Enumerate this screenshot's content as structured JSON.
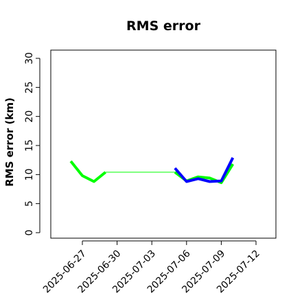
{
  "chart_data": {
    "type": "line",
    "title": "RMS error",
    "xlabel": "",
    "ylabel": "RMS error (km)",
    "ylim": [
      0,
      30
    ],
    "yticks": [
      "0",
      "5",
      "10",
      "15",
      "20",
      "25",
      "30"
    ],
    "xlim": [
      "2025-06-24",
      "2025-07-14"
    ],
    "xticks": [
      {
        "label": "2025-06-27",
        "date": "2025-06-27",
        "color": "#000000"
      },
      {
        "label": "2025-06-30",
        "date": "2025-06-30",
        "color": "#000000"
      },
      {
        "label": "2025-07-03",
        "date": "2025-07-03",
        "color": "#228b22"
      },
      {
        "label": "2025-07-06",
        "date": "2025-07-06",
        "color": "#000000"
      },
      {
        "label": "2025-07-09",
        "date": "2025-07-09",
        "color": "#000000"
      },
      {
        "label": "2025-07-12",
        "date": "2025-07-12",
        "color": "#000000"
      }
    ],
    "grid": false,
    "series": [
      {
        "color": "#00ff00",
        "line_width": 4,
        "points": [
          {
            "x": "2025-06-26",
            "y": 12.3
          },
          {
            "x": "2025-06-27",
            "y": 9.8
          },
          {
            "x": "2025-06-28",
            "y": 8.8
          },
          {
            "x": "2025-06-29",
            "y": 10.4
          }
        ]
      },
      {
        "color": "#00ff00",
        "line_width": 1,
        "points": [
          {
            "x": "2025-06-29",
            "y": 10.4
          },
          {
            "x": "2025-07-05",
            "y": 10.4
          }
        ]
      },
      {
        "color": "#00ff00",
        "line_width": 4,
        "points": [
          {
            "x": "2025-07-05",
            "y": 10.4
          },
          {
            "x": "2025-07-06",
            "y": 8.9
          },
          {
            "x": "2025-07-07",
            "y": 9.6
          },
          {
            "x": "2025-07-08",
            "y": 9.4
          },
          {
            "x": "2025-07-09",
            "y": 8.6
          },
          {
            "x": "2025-07-10",
            "y": 11.8
          }
        ]
      },
      {
        "color": "#0000ff",
        "line_width": 4,
        "points": [
          {
            "x": "2025-07-05",
            "y": 11.1
          },
          {
            "x": "2025-07-06",
            "y": 8.8
          },
          {
            "x": "2025-07-07",
            "y": 9.3
          },
          {
            "x": "2025-07-08",
            "y": 8.8
          },
          {
            "x": "2025-07-09",
            "y": 8.9
          },
          {
            "x": "2025-07-10",
            "y": 12.9
          }
        ]
      }
    ]
  }
}
